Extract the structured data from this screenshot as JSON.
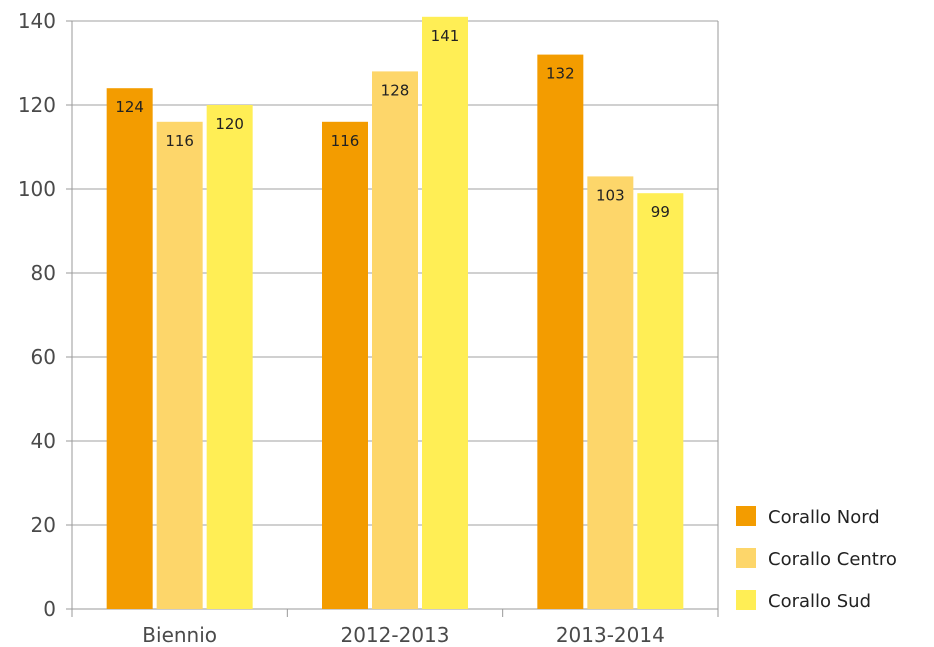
{
  "chart_data": {
    "type": "bar",
    "categories": [
      "Biennio",
      "2012-2013",
      "2013-2014"
    ],
    "series": [
      {
        "name": "Corallo Nord",
        "values": [
          124,
          116,
          132
        ],
        "color": "#F39C00"
      },
      {
        "name": "Corallo Centro",
        "values": [
          116,
          128,
          103
        ],
        "color": "#FDD66A"
      },
      {
        "name": "Corallo Sud",
        "values": [
          120,
          141,
          99
        ],
        "color": "#FFEE55"
      }
    ],
    "title": "",
    "xlabel": "",
    "ylabel": "",
    "ylim": [
      0,
      140
    ],
    "yticks": [
      0,
      20,
      40,
      60,
      80,
      100,
      120,
      140
    ],
    "grid": true,
    "legend_position": "bottom-right"
  }
}
